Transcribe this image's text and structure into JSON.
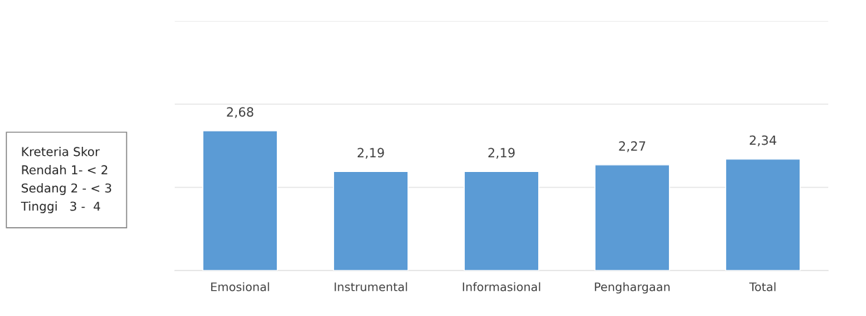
{
  "chart_data": {
    "type": "bar",
    "categories": [
      "Emosional",
      "Instrumental",
      "Informasional",
      "Penghargaan",
      "Total"
    ],
    "values": [
      2.68,
      2.19,
      2.19,
      2.27,
      2.34
    ],
    "color": "#5b9bd5",
    "data_labels": true,
    "value_labels": [
      "2,68",
      "2,19",
      "2,19",
      "2,27",
      "2,34"
    ],
    "ylim": [
      1,
      4
    ],
    "yticks": [
      {
        "value": 1,
        "label": null
      },
      {
        "value": 2,
        "label": null
      },
      {
        "value": 3,
        "label": null
      },
      {
        "value": 4,
        "label": null
      }
    ],
    "grid": "y",
    "tick_labels": "x",
    "annotations": [
      "Kreteria Skor\nRendah 1- < 2\nSedang 2 - < 3\nTinggi   3 -  4"
    ]
  }
}
